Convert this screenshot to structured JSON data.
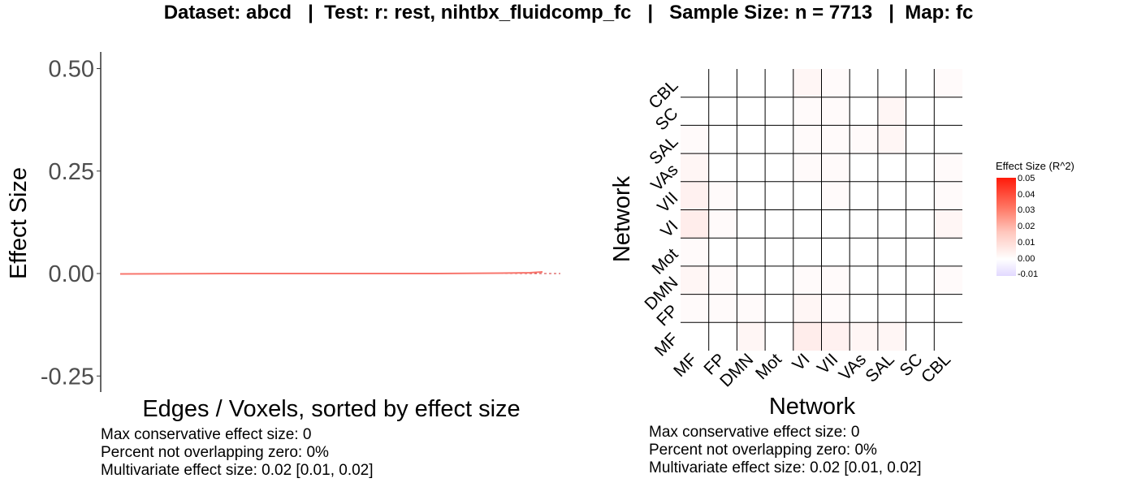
{
  "title": "Dataset: abcd   |  Test: r: rest, nihtbx_fluidcomp_fc   |   Sample Size: n = 7713   |  Map: fc",
  "left_stats": [
    "Max conservative effect size: 0",
    "Percent not overlapping zero: 0%",
    "Multivariate effect size: 0.02 [0.01, 0.02]"
  ],
  "right_stats": [
    "Max conservative effect size: 0",
    "Percent not overlapping zero: 0%",
    "Multivariate effect size: 0.02 [0.01, 0.02]"
  ],
  "legend": {
    "title": "Effect Size (R^2)",
    "ticks": [
      "0.05",
      "0.04",
      "0.03",
      "0.02",
      "0.01",
      "0.00",
      "-0.01"
    ],
    "colors": {
      "high": "#ff1a0a",
      "zero": "#ffffff",
      "low": "#e2d9ff"
    }
  },
  "chart_data": [
    {
      "type": "line",
      "xlabel": "Edges / Voxels, sorted by effect size",
      "ylabel": "Effect Size",
      "y_ticks": [
        "0.50",
        "0.25",
        "0.00",
        "-0.25"
      ],
      "ylim": [
        -0.27,
        0.53
      ],
      "x": [
        0,
        0.25,
        0.5,
        0.75,
        0.9,
        0.97,
        1.0
      ],
      "series": [
        {
          "values": [
            -0.001,
            0.0,
            0.0,
            0.0,
            0.001,
            0.002,
            0.004
          ],
          "color": "#f8766d"
        }
      ],
      "reference_line": {
        "y": 0,
        "style": "dashed",
        "color": "#d03030"
      },
      "grid": false
    },
    {
      "type": "heatmap",
      "xlabel": "Network",
      "ylabel": "Network",
      "x_categories": [
        "MF",
        "FP",
        "DMN",
        "Mot",
        "VI",
        "VII",
        "VAs",
        "SAL",
        "SC",
        "CBL"
      ],
      "y_categories": [
        "MF",
        "FP",
        "DMN",
        "Mot",
        "VI",
        "VII",
        "VAs",
        "SAL",
        "SC",
        "CBL"
      ],
      "values": [
        [
          0.0,
          0.0,
          0.002,
          0.0,
          0.004,
          0.003,
          0.002,
          0.002,
          0.0,
          0.0
        ],
        [
          0.001,
          0.001,
          0.001,
          0.0,
          0.002,
          0.001,
          0.0,
          0.0,
          0.0,
          0.0
        ],
        [
          0.002,
          0.001,
          0.0,
          0.0,
          0.001,
          0.001,
          0.0,
          0.0,
          0.0,
          0.001
        ],
        [
          0.001,
          0.0,
          0.0,
          0.0,
          0.0,
          0.0,
          0.0,
          0.0,
          0.0,
          0.0
        ],
        [
          0.004,
          0.001,
          0.0,
          0.0,
          0.0,
          0.0,
          0.0,
          0.0,
          0.0,
          0.002
        ],
        [
          0.003,
          0.001,
          0.0,
          0.0,
          0.0,
          0.001,
          0.0,
          0.0,
          0.0,
          0.001
        ],
        [
          0.002,
          0.0,
          0.0,
          0.0,
          0.001,
          0.001,
          0.0,
          0.0,
          0.0,
          0.001
        ],
        [
          0.001,
          0.0,
          0.0,
          0.0,
          0.001,
          0.001,
          0.001,
          0.002,
          0.0,
          0.0
        ],
        [
          0.0,
          0.0,
          0.0,
          0.0,
          0.001,
          0.001,
          0.0,
          0.002,
          0.0,
          0.0
        ],
        [
          0.0,
          0.0,
          0.0,
          0.0,
          0.002,
          0.001,
          0.0,
          0.0,
          0.0,
          0.001
        ]
      ],
      "zlim": [
        -0.01,
        0.05
      ]
    }
  ]
}
